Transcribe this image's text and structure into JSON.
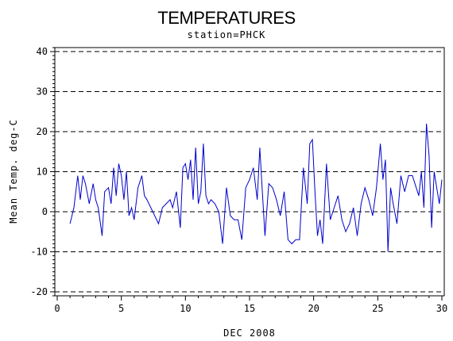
{
  "chart_data": {
    "type": "line",
    "title": "TEMPERATURES",
    "subtitle": "station=PHCK",
    "xlabel": "DEC 2008",
    "ylabel": "Mean Temp. deg-C",
    "xlim": [
      0,
      30
    ],
    "ylim": [
      -21,
      41
    ],
    "x_ticks": [
      0,
      5,
      10,
      15,
      20,
      25,
      30
    ],
    "y_ticks": [
      -20,
      -10,
      0,
      10,
      20,
      30,
      40
    ],
    "grid": "dashed horizontal lines at y ticks",
    "line_color": "#0000cc",
    "series": [
      {
        "x": [
          1.0,
          1.3,
          1.6,
          1.8,
          2.0,
          2.2,
          2.5,
          2.8,
          3.0,
          3.2,
          3.5,
          3.7,
          4.0,
          4.2,
          4.4,
          4.6,
          4.8,
          5.0,
          5.2,
          5.4,
          5.6,
          5.8,
          6.0,
          6.3,
          6.6,
          6.8,
          7.0,
          7.3,
          7.6,
          7.9,
          8.2,
          8.5,
          8.8,
          9.0,
          9.3,
          9.6,
          9.8,
          10.0,
          10.2,
          10.4,
          10.6,
          10.8,
          11.0,
          11.2,
          11.4,
          11.6,
          11.8,
          12.0,
          12.3,
          12.6,
          12.9,
          13.2,
          13.5,
          13.8,
          14.1,
          14.4,
          14.7,
          15.0,
          15.3,
          15.6,
          15.8,
          16.0,
          16.2,
          16.5,
          16.8,
          17.1,
          17.4,
          17.7,
          18.0,
          18.3,
          18.6,
          18.9,
          19.2,
          19.5,
          19.7,
          19.9,
          20.1,
          20.3,
          20.5,
          20.7,
          21.0,
          21.3,
          21.6,
          21.9,
          22.2,
          22.5,
          22.8,
          23.1,
          23.4,
          23.7,
          24.0,
          24.3,
          24.6,
          24.9,
          25.2,
          25.4,
          25.6,
          25.8,
          26.0,
          26.2,
          26.5,
          26.8,
          27.1,
          27.4,
          27.7,
          28.0,
          28.2,
          28.4,
          28.6,
          28.8,
          29.0,
          29.2,
          29.4,
          29.6,
          29.8,
          30.0
        ],
        "values": [
          -3,
          1,
          9,
          3,
          9,
          7,
          2,
          7,
          3,
          1,
          -6,
          5,
          6,
          2,
          11,
          4,
          12,
          9,
          3,
          10,
          -1,
          1,
          -2,
          6,
          9,
          4,
          3,
          1,
          -1,
          -3,
          1,
          2,
          3,
          1,
          5,
          -4,
          11,
          12,
          8,
          13,
          3,
          16,
          2,
          5,
          17,
          4,
          2,
          3,
          2,
          0,
          -8,
          6,
          -1,
          -2,
          -2,
          -7,
          6,
          8,
          11,
          3,
          16,
          5,
          -6,
          7,
          6,
          3,
          -1,
          5,
          -7,
          -8,
          -7,
          -7,
          11,
          2,
          17,
          18,
          5,
          -6,
          -2,
          -8,
          12,
          -2,
          1,
          4,
          -2,
          -5,
          -3,
          1,
          -6,
          2,
          6,
          3,
          -1,
          6,
          17,
          8,
          13,
          -10,
          6,
          2,
          -3,
          9,
          5,
          9,
          9,
          6,
          4,
          10,
          1,
          22,
          14,
          -4,
          10,
          6,
          2,
          8
        ]
      }
    ]
  }
}
